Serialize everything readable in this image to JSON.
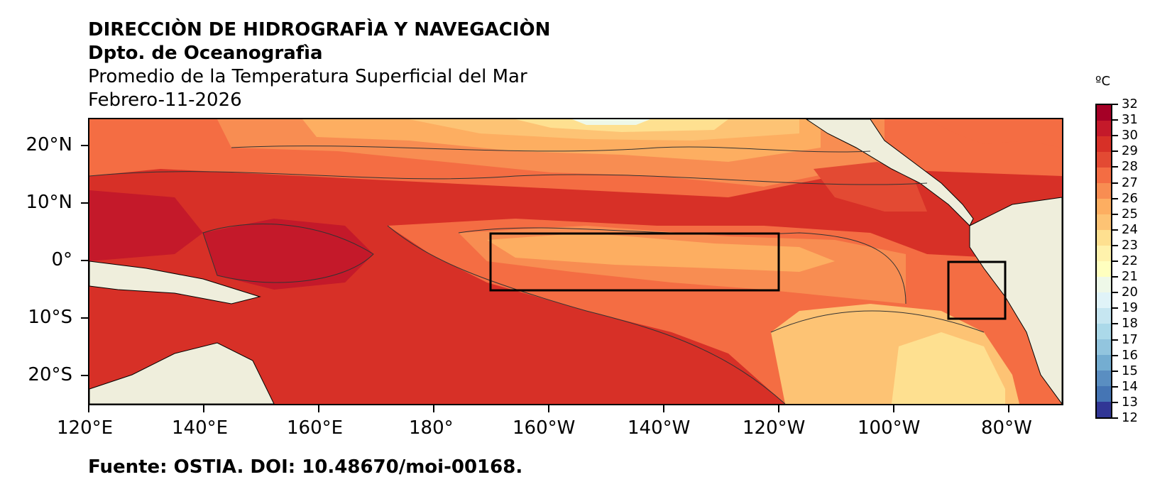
{
  "header": {
    "line1": "DIRECCIÒN DE HIDROGRAFÌA Y NAVEGACIÒN",
    "line2": "Dpto. de Oceanografìa",
    "line3": "Promedio de la Temperatura Superficial del Mar",
    "line4": "Febrero-11-2026"
  },
  "map": {
    "lat_labels": [
      "20°N",
      "10°N",
      "0°",
      "10°S",
      "20°S"
    ],
    "lon_labels": [
      "120°E",
      "140°E",
      "160°E",
      "180°",
      "160°W",
      "140°W",
      "120°W",
      "100°W",
      "80°W"
    ],
    "regions": [
      "niño-3.4-box",
      "niño-1+2-box"
    ],
    "land_color": "#efeedc"
  },
  "colorbar": {
    "unit": "ºC",
    "labels": [
      "32",
      "31",
      "30",
      "29",
      "28",
      "27",
      "26",
      "25",
      "24",
      "23",
      "22",
      "21",
      "20",
      "19",
      "18",
      "17",
      "16",
      "15",
      "14",
      "13",
      "12"
    ],
    "colors": [
      "#a50026",
      "#c4192a",
      "#d73027",
      "#e34a33",
      "#f46d43",
      "#f88d52",
      "#fdae61",
      "#fdc374",
      "#fee090",
      "#fff2ac",
      "#ffffbf",
      "#eef8e8",
      "#e0f3f8",
      "#c6e6f1",
      "#abd9e9",
      "#92c5de",
      "#74add1",
      "#5a8ec1",
      "#4575b4",
      "#313695"
    ]
  },
  "footer": {
    "source": "Fuente: OSTIA. DOI: 10.48670/moi-00168."
  }
}
